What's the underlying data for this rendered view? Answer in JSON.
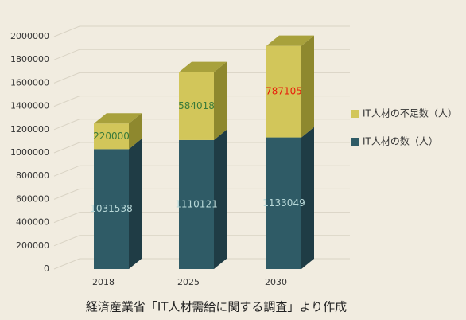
{
  "chart_data": {
    "type": "bar3d-stacked",
    "categories": [
      "2018",
      "2025",
      "2030"
    ],
    "series": [
      {
        "name": "IT人材の数（人）",
        "color": "#2f5b66",
        "side_color": "#1f3c45",
        "top_color": "#3f6e78",
        "values": [
          1031538,
          1110121,
          1133049
        ],
        "label_colors": [
          "#b8d8d8",
          "#b8d8d8",
          "#b8d8d8"
        ]
      },
      {
        "name": "IT人材の不足数（人）",
        "color": "#d2c65a",
        "side_color": "#8e882e",
        "top_color": "#a8a13c",
        "values": [
          220000,
          584018,
          787105
        ],
        "label_colors": [
          "#3a7a3a",
          "#3a7a3a",
          "#e8200c"
        ]
      }
    ],
    "ylim": [
      0,
      2000000
    ],
    "yticks": [
      0,
      200000,
      400000,
      600000,
      800000,
      1000000,
      1200000,
      1400000,
      1600000,
      1800000,
      2000000
    ],
    "grid": true,
    "caption": "経済産業省「IT人材需給に関する調査」より作成"
  }
}
